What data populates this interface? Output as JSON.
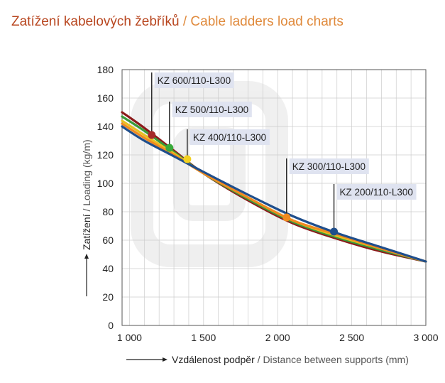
{
  "header": {
    "title_cz": "Zatížení kabelových žebříků",
    "title_sep": " / ",
    "title_en": "Cable ladders load charts"
  },
  "colors": {
    "title_cz": "#b8461f",
    "title_en": "#e08a3c",
    "annotation_bg": "#dfe3f0",
    "grid": "#cccccc"
  },
  "chart_data": {
    "type": "line",
    "xlabel_cz": "Vzdálenost podpěr",
    "xlabel_sep": " / ",
    "xlabel_en": "Distance between supports (mm)",
    "ylabel_cz": "Zatížení",
    "ylabel_sep": " / ",
    "ylabel_en": "Loading (kg/m)",
    "xlim": [
      950,
      3000
    ],
    "ylim": [
      0,
      180
    ],
    "x_ticks": [
      {
        "value": 1000,
        "label": "1 000"
      },
      {
        "value": 1500,
        "label": "1 500"
      },
      {
        "value": 2000,
        "label": "2 000"
      },
      {
        "value": 2500,
        "label": "2 500"
      },
      {
        "value": 3000,
        "label": "3 000"
      }
    ],
    "y_ticks": [
      {
        "value": 0,
        "label": "0"
      },
      {
        "value": 20,
        "label": "20"
      },
      {
        "value": 40,
        "label": "40"
      },
      {
        "value": 60,
        "label": "60"
      },
      {
        "value": 80,
        "label": "80"
      },
      {
        "value": 100,
        "label": "100"
      },
      {
        "value": 120,
        "label": "120"
      },
      {
        "value": 140,
        "label": "140"
      },
      {
        "value": 160,
        "label": "160"
      },
      {
        "value": 180,
        "label": "180"
      }
    ],
    "grid": true,
    "series": [
      {
        "name": "KZ 600/110-L300",
        "color": "#8b1a1a",
        "x": [
          950,
          1100,
          1300,
          1500,
          1800,
          2100,
          2400,
          2700,
          3000
        ],
        "y": [
          150,
          139,
          123,
          107,
          88,
          72,
          61,
          52,
          45
        ],
        "marker": {
          "x": 1150,
          "y": 134,
          "color": "#a52a2a"
        }
      },
      {
        "name": "KZ 500/110-L300",
        "color": "#3a9a3a",
        "x": [
          950,
          1100,
          1300,
          1500,
          1800,
          2100,
          2400,
          2700,
          3000
        ],
        "y": [
          147,
          137,
          122,
          107,
          89,
          73,
          62,
          53,
          45
        ],
        "marker": {
          "x": 1270,
          "y": 125,
          "color": "#3aaa3a"
        }
      },
      {
        "name": "KZ 400/110-L300",
        "color": "#e8c020",
        "x": [
          950,
          1100,
          1300,
          1500,
          1800,
          2100,
          2400,
          2700,
          3000
        ],
        "y": [
          144,
          134,
          121,
          107,
          90,
          74,
          63,
          54,
          45
        ],
        "marker": {
          "x": 1390,
          "y": 117,
          "color": "#f2d020"
        }
      },
      {
        "name": "KZ 300/110-L300",
        "color": "#f08a20",
        "x": [
          950,
          1100,
          1300,
          1500,
          1800,
          2100,
          2400,
          2700,
          3000
        ],
        "y": [
          142,
          132,
          120,
          107,
          90,
          74,
          64,
          54,
          45
        ],
        "marker": {
          "x": 2060,
          "y": 76,
          "color": "#f08a20"
        }
      },
      {
        "name": "KZ 200/110-L300",
        "color": "#1f4e8c",
        "x": [
          950,
          1100,
          1300,
          1500,
          1800,
          2100,
          2400,
          2700,
          3000
        ],
        "y": [
          140,
          130,
          119,
          108,
          92,
          77,
          65,
          55,
          45
        ],
        "marker": {
          "x": 2380,
          "y": 66,
          "color": "#1f4e8c"
        }
      }
    ],
    "annotations": [
      {
        "label": "KZ 600/110-L300",
        "series": 0
      },
      {
        "label": "KZ 500/110-L300",
        "series": 1
      },
      {
        "label": "KZ 400/110-L300",
        "series": 2
      },
      {
        "label": "KZ 300/110-L300",
        "series": 3
      },
      {
        "label": "KZ 200/110-L300",
        "series": 4
      }
    ]
  }
}
